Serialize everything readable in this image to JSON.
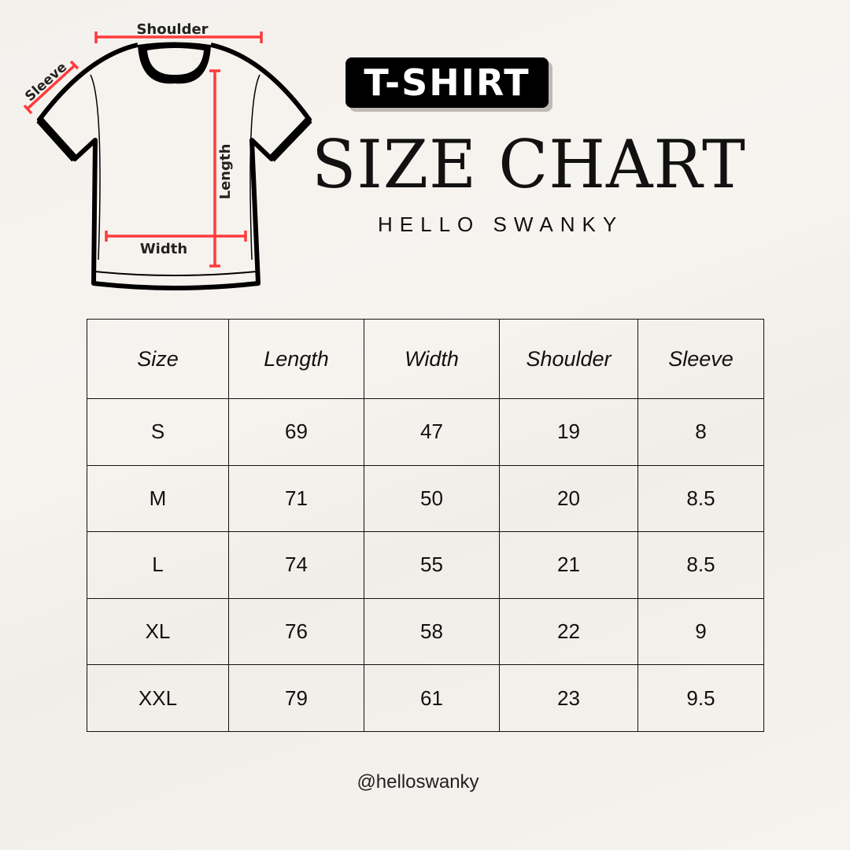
{
  "diagram": {
    "shoulder_label": "Shoulder",
    "sleeve_label": "Sleeve",
    "length_label": "Length",
    "width_label": "Width",
    "measure_color": "#ff3b3b"
  },
  "header": {
    "badge": "T-SHIRT",
    "title": "SIZE CHART",
    "brand": "HELLO SWANKY"
  },
  "table": {
    "columns": [
      "Size",
      "Length",
      "Width",
      "Shoulder",
      "Sleeve"
    ],
    "rows": [
      [
        "S",
        "69",
        "47",
        "19",
        "8"
      ],
      [
        "M",
        "71",
        "50",
        "20",
        "8.5"
      ],
      [
        "L",
        "74",
        "55",
        "21",
        "8.5"
      ],
      [
        "XL",
        "76",
        "58",
        "22",
        "9"
      ],
      [
        "XXL",
        "79",
        "61",
        "23",
        "9.5"
      ]
    ]
  },
  "footer": {
    "handle": "@helloswanky"
  }
}
